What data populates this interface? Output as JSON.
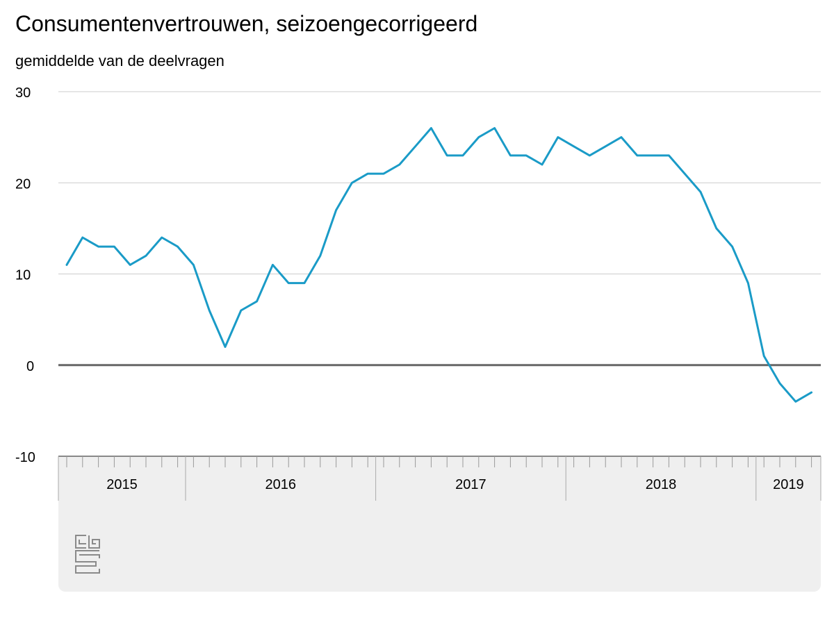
{
  "title": "Consumentenvertrouwen, seizoengecorrigeerd",
  "subtitle": "gemiddelde van de deelvragen",
  "colors": {
    "line": "#1a9bc7",
    "grid": "#cccccc",
    "zero": "#666666",
    "panel": "#efefef",
    "axis": "#888888"
  },
  "logo_icon": "cbs-logo-icon",
  "chart_data": {
    "type": "line",
    "title": "Consumentenvertrouwen, seizoengecorrigeerd",
    "ylabel": "gemiddelde van de deelvragen",
    "xlabel": "",
    "ylim": [
      -10,
      30
    ],
    "yticks": [
      "30",
      "20",
      "10",
      "0",
      "-10"
    ],
    "yticks_values": [
      30,
      20,
      10,
      0,
      -10
    ],
    "grid": true,
    "frequency": "monthly",
    "x_start": "2015-05",
    "x_end": "2019-04",
    "year_labels": [
      "2015",
      "2016",
      "2017",
      "2018",
      "2019"
    ],
    "series": [
      {
        "values": [
          11,
          14,
          13,
          13,
          11,
          12,
          14,
          13,
          11,
          6,
          2,
          6,
          7,
          11,
          9,
          9,
          12,
          17,
          20,
          21,
          21,
          22,
          24,
          26,
          23,
          23,
          25,
          26,
          23,
          23,
          22,
          25,
          24,
          23,
          24,
          25,
          23,
          23,
          23,
          21,
          19,
          15,
          13,
          9,
          1,
          -2,
          -4,
          -3
        ]
      }
    ]
  }
}
